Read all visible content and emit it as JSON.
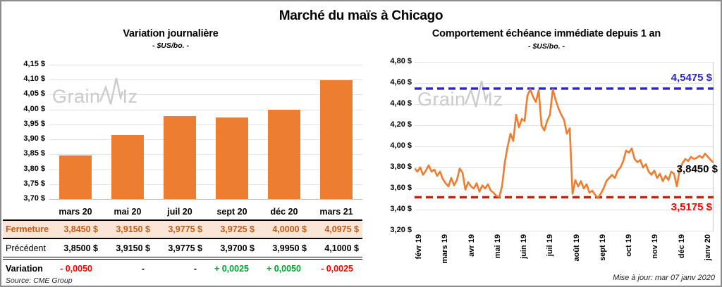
{
  "page": {
    "title": "Marché du maïs à Chicago",
    "source": "Source: CME Group",
    "updated": "Mise à jour: mar 07 janv 2020",
    "watermark": {
      "part1": "Grain",
      "part2": "Iz"
    }
  },
  "colors": {
    "orange": "#ED7D31",
    "blue": "#2626C9",
    "red": "#FF0000",
    "green": "#00A033",
    "close_text": "#C55A11",
    "close_bg": "#FBE5D6",
    "grid": "#E2E2E2",
    "watermark": "#CBCBCB"
  },
  "chart_data": [
    {
      "name": "variation-journaliere",
      "type": "bar",
      "title": "Variation journalière",
      "subtitle": "- $US/bo. -",
      "categories": [
        "mars 20",
        "mai 20",
        "juil 20",
        "sept 20",
        "déc 20",
        "mars 21"
      ],
      "values": [
        3.845,
        3.915,
        3.9775,
        3.9725,
        4.0,
        4.0975
      ],
      "ylim": [
        3.7,
        4.15
      ],
      "ytick_labels": [
        "4,15 $",
        "4,10 $",
        "4,05 $",
        "4,00 $",
        "3,95 $",
        "3,90 $",
        "3,85 $",
        "3,80 $",
        "3,75 $",
        "3,70 $"
      ],
      "bar_color": "#ED7D31",
      "grid": true
    },
    {
      "name": "echeance-immediate",
      "type": "line",
      "title": "Comportement échéance immédiate depuis 1 an",
      "subtitle": "- $US/bo. -",
      "x_tick_labels": [
        "févr 19",
        "mars 19",
        "avr 19",
        "mai 19",
        "juin 19",
        "juil 19",
        "août 19",
        "sept 19",
        "oct 19",
        "nov 19",
        "déc 19",
        "janv 20"
      ],
      "values": [
        3.79,
        3.76,
        3.8,
        3.73,
        3.77,
        3.82,
        3.76,
        3.78,
        3.72,
        3.76,
        3.69,
        3.65,
        3.62,
        3.7,
        3.63,
        3.68,
        3.79,
        3.75,
        3.59,
        3.66,
        3.62,
        3.6,
        3.65,
        3.57,
        3.63,
        3.6,
        3.64,
        3.58,
        3.56,
        3.53,
        3.52,
        3.62,
        3.85,
        4.0,
        4.12,
        4.05,
        4.3,
        4.18,
        4.26,
        4.24,
        4.48,
        4.54,
        4.47,
        4.42,
        4.53,
        4.2,
        4.15,
        4.24,
        4.3,
        4.54,
        4.44,
        4.36,
        4.3,
        4.25,
        4.12,
        4.17,
        3.55,
        3.68,
        3.62,
        3.67,
        3.6,
        3.64,
        3.56,
        3.58,
        3.54,
        3.51,
        3.55,
        3.6,
        3.67,
        3.7,
        3.73,
        3.7,
        3.77,
        3.8,
        3.86,
        3.96,
        3.94,
        3.98,
        3.88,
        3.85,
        3.87,
        3.8,
        3.83,
        3.76,
        3.73,
        3.77,
        3.7,
        3.74,
        3.67,
        3.72,
        3.68,
        3.76,
        3.74,
        3.62,
        3.78,
        3.84,
        3.88,
        3.86,
        3.9,
        3.88,
        3.89,
        3.91,
        3.89,
        3.93,
        3.9,
        3.87,
        3.845
      ],
      "ylim": [
        3.2,
        4.8
      ],
      "ytick_labels": [
        "4,80 $",
        "4,60 $",
        "4,40 $",
        "4,20 $",
        "4,00 $",
        "3,80 $",
        "3,60 $",
        "3,40 $",
        "3,20 $"
      ],
      "line_color": "#ED7D31",
      "hlines": [
        {
          "value": 4.5475,
          "label": "4,5475 $",
          "color": "#2626C9"
        },
        {
          "value": 3.5175,
          "label": "3,5175 $",
          "color": "#FF0000"
        }
      ],
      "last_value": 3.845,
      "last_label": "3,8450 $",
      "grid": true,
      "legend": "none"
    }
  ],
  "table": {
    "columns": [
      "mars 20",
      "mai 20",
      "juil 20",
      "sept 20",
      "déc 20",
      "mars 21"
    ],
    "rows": [
      {
        "label": "Fermeture",
        "cells": [
          "3,8450 $",
          "3,9150 $",
          "3,9775 $",
          "3,9725 $",
          "4,0000 $",
          "4,0975 $"
        ]
      },
      {
        "label": "Précédent",
        "cells": [
          "3,8500 $",
          "3,9150 $",
          "3,9775 $",
          "3,9700 $",
          "3,9950 $",
          "4,1000 $"
        ]
      },
      {
        "label": "Variation",
        "cells": [
          "- 0,0050",
          "-",
          "-",
          "+ 0,0025",
          "+ 0,0050",
          "- 0,0025"
        ],
        "cell_colors": [
          "#FF0000",
          "#000000",
          "#000000",
          "#00A033",
          "#00A033",
          "#FF0000"
        ]
      }
    ]
  }
}
